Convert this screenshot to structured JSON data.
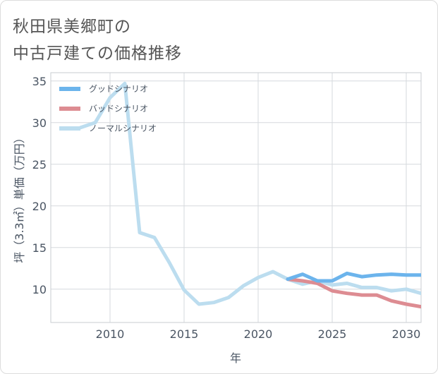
{
  "title": {
    "line1": "秋田県美郷町の",
    "line2": "中古戸建ての価格推移"
  },
  "chart_data": {
    "type": "line",
    "title": "秋田県美郷町の中古戸建ての価格推移",
    "xlabel": "年",
    "ylabel": "坪（3.3㎡）単価（万円）",
    "xlim": [
      2006,
      2031
    ],
    "ylim": [
      6,
      36
    ],
    "x_ticks": [
      2010,
      2015,
      2020,
      2025,
      2030
    ],
    "y_ticks": [
      10,
      15,
      20,
      25,
      30,
      35
    ],
    "grid": true,
    "legend_position": "top-left",
    "series": [
      {
        "name": "グッドシナリオ",
        "color": "#6cb4ec",
        "x": [
          2022,
          2023,
          2024,
          2025,
          2026,
          2027,
          2028,
          2029,
          2030,
          2031
        ],
        "y": [
          11.2,
          11.8,
          11.0,
          11.0,
          11.9,
          11.5,
          11.7,
          11.8,
          11.7,
          11.7
        ]
      },
      {
        "name": "バッドシナリオ",
        "color": "#dd8c92",
        "x": [
          2022,
          2023,
          2024,
          2025,
          2026,
          2027,
          2028,
          2029,
          2030,
          2031
        ],
        "y": [
          11.2,
          11.0,
          10.7,
          9.8,
          9.5,
          9.3,
          9.3,
          8.6,
          8.2,
          7.9
        ]
      },
      {
        "name": "ノーマルシナリオ",
        "color": "#bcddef",
        "x": [
          2008,
          2009,
          2010,
          2011,
          2012,
          2013,
          2014,
          2015,
          2016,
          2017,
          2018,
          2019,
          2020,
          2021,
          2022,
          2023,
          2024,
          2025,
          2026,
          2027,
          2028,
          2029,
          2030,
          2031
        ],
        "y": [
          29.4,
          30.0,
          33.0,
          34.7,
          16.8,
          16.2,
          13.2,
          9.9,
          8.2,
          8.4,
          9.0,
          10.4,
          11.4,
          12.1,
          11.2,
          10.6,
          11.0,
          10.5,
          10.7,
          10.2,
          10.2,
          9.8,
          10.0,
          9.5
        ]
      }
    ]
  }
}
